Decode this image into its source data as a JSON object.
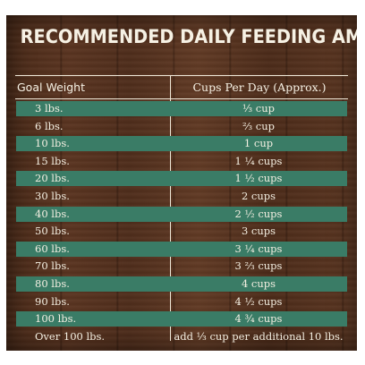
{
  "title": "RECOMMENDED DAILY FEEDING AMOUNTS:",
  "headers": {
    "weight": "Goal Weight",
    "cups": "Cups Per Day (Approx.)"
  },
  "rows": [
    {
      "weight": "3 lbs.",
      "cups": "⅓ cup",
      "band": true
    },
    {
      "weight": "6 lbs.",
      "cups": "⅔ cup",
      "band": false
    },
    {
      "weight": "10 lbs.",
      "cups": "1 cup",
      "band": true
    },
    {
      "weight": "15 lbs.",
      "cups": "1 ¼ cups",
      "band": false
    },
    {
      "weight": "20 lbs.",
      "cups": "1 ½ cups",
      "band": true
    },
    {
      "weight": "30 lbs.",
      "cups": "2 cups",
      "band": false
    },
    {
      "weight": "40 lbs.",
      "cups": "2 ½ cups",
      "band": true
    },
    {
      "weight": "50 lbs.",
      "cups": "3 cups",
      "band": false
    },
    {
      "weight": "60 lbs.",
      "cups": "3 ¼ cups",
      "band": true
    },
    {
      "weight": "70 lbs.",
      "cups": "3 ⅔ cups",
      "band": false
    },
    {
      "weight": "80 lbs.",
      "cups": "4 cups",
      "band": true
    },
    {
      "weight": "90 lbs.",
      "cups": "4 ½ cups",
      "band": false
    },
    {
      "weight": "100 lbs.",
      "cups": "4 ¾ cups",
      "band": true
    },
    {
      "weight": "Over 100 lbs.",
      "cups": "add ⅓ cup per additional 10 lbs.",
      "band": false
    }
  ]
}
